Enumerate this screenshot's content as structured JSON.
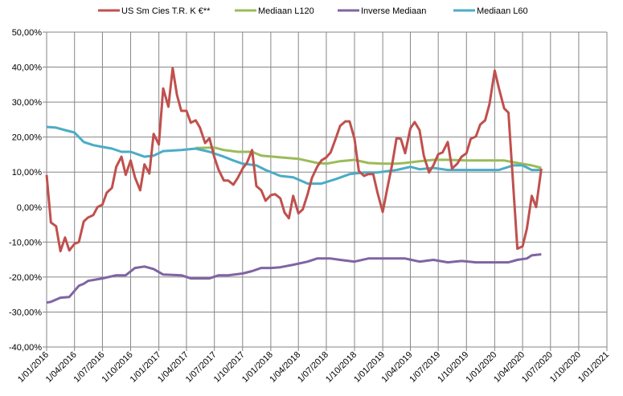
{
  "chart_data": {
    "type": "line",
    "title": "",
    "xlabel": "",
    "ylabel": "",
    "legend_position": "top",
    "grid": true,
    "xlim": [
      "2016-01-01",
      "2021-01-01"
    ],
    "ylim": [
      -40,
      50
    ],
    "y_tick_labels": [
      "-40,00%",
      "-30,00%",
      "-20,00%",
      "-10,00%",
      "0,00%",
      "10,00%",
      "20,00%",
      "30,00%",
      "40,00%",
      "50,00%"
    ],
    "y_tick_values": [
      -40,
      -30,
      -20,
      -10,
      0,
      10,
      20,
      30,
      40,
      50
    ],
    "x_tick_labels": [
      "1/01/2016",
      "1/04/2016",
      "1/07/2016",
      "1/10/2016",
      "1/01/2017",
      "1/04/2017",
      "1/07/2017",
      "1/10/2017",
      "1/01/2018",
      "1/04/2018",
      "1/07/2018",
      "1/10/2018",
      "1/01/2019",
      "1/04/2019",
      "1/07/2019",
      "1/10/2019",
      "1/01/2020",
      "1/04/2020",
      "1/07/2020",
      "1/10/2020",
      "1/01/2021"
    ],
    "x_tick_values": [
      "2016-01-01",
      "2016-04-01",
      "2016-07-01",
      "2016-10-01",
      "2017-01-01",
      "2017-04-01",
      "2017-07-01",
      "2017-10-01",
      "2018-01-01",
      "2018-04-01",
      "2018-07-01",
      "2018-10-01",
      "2019-01-01",
      "2019-04-01",
      "2019-07-01",
      "2019-10-01",
      "2020-01-01",
      "2020-04-01",
      "2020-07-01",
      "2020-10-01",
      "2021-01-01"
    ],
    "series": [
      {
        "name": "US Sm Cies T.R. K €**",
        "color": "#c0504d",
        "points": [
          [
            "2016-01-01",
            9.2
          ],
          [
            "2016-01-15",
            -4.4
          ],
          [
            "2016-02-01",
            -5.5
          ],
          [
            "2016-02-15",
            -12.6
          ],
          [
            "2016-03-01",
            -8.7
          ],
          [
            "2016-03-15",
            -12.4
          ],
          [
            "2016-04-01",
            -10.5
          ],
          [
            "2016-04-15",
            -10
          ],
          [
            "2016-05-01",
            -4.1
          ],
          [
            "2016-05-15",
            -3
          ],
          [
            "2016-06-01",
            -2.3
          ],
          [
            "2016-06-15",
            0
          ],
          [
            "2016-07-01",
            0.7
          ],
          [
            "2016-07-15",
            4.1
          ],
          [
            "2016-08-01",
            5.5
          ],
          [
            "2016-08-15",
            11.5
          ],
          [
            "2016-09-01",
            14.4
          ],
          [
            "2016-09-15",
            9.2
          ],
          [
            "2016-10-01",
            13.3
          ],
          [
            "2016-10-15",
            8.5
          ],
          [
            "2016-11-01",
            4.8
          ],
          [
            "2016-11-15",
            12.2
          ],
          [
            "2016-12-01",
            9.6
          ],
          [
            "2016-12-15",
            20.9
          ],
          [
            "2017-01-01",
            17.9
          ],
          [
            "2017-01-15",
            33.9
          ],
          [
            "2017-02-01",
            28.7
          ],
          [
            "2017-02-15",
            39.7
          ],
          [
            "2017-03-01",
            32.1
          ],
          [
            "2017-03-15",
            27.5
          ],
          [
            "2017-04-01",
            27.5
          ],
          [
            "2017-04-15",
            24.1
          ],
          [
            "2017-05-01",
            24.8
          ],
          [
            "2017-05-15",
            22.7
          ],
          [
            "2017-06-01",
            18.3
          ],
          [
            "2017-06-15",
            19.7
          ],
          [
            "2017-07-01",
            14.2
          ],
          [
            "2017-07-15",
            10.6
          ],
          [
            "2017-08-01",
            7.6
          ],
          [
            "2017-08-15",
            7.6
          ],
          [
            "2017-09-01",
            6.4
          ],
          [
            "2017-09-15",
            8.3
          ],
          [
            "2017-10-01",
            11
          ],
          [
            "2017-10-15",
            12.6
          ],
          [
            "2017-11-01",
            16.3
          ],
          [
            "2017-11-15",
            6
          ],
          [
            "2017-12-01",
            4.8
          ],
          [
            "2017-12-15",
            1.8
          ],
          [
            "2018-01-01",
            3.4
          ],
          [
            "2018-01-15",
            3.7
          ],
          [
            "2018-02-01",
            2.5
          ],
          [
            "2018-02-15",
            -1.6
          ],
          [
            "2018-03-01",
            -3.2
          ],
          [
            "2018-03-15",
            3.2
          ],
          [
            "2018-04-01",
            -1.8
          ],
          [
            "2018-04-15",
            -0.7
          ],
          [
            "2018-05-01",
            3.7
          ],
          [
            "2018-05-15",
            8.3
          ],
          [
            "2018-06-01",
            11.5
          ],
          [
            "2018-06-15",
            13.3
          ],
          [
            "2018-07-01",
            14.2
          ],
          [
            "2018-07-15",
            15.6
          ],
          [
            "2018-08-01",
            19.7
          ],
          [
            "2018-08-15",
            23.2
          ],
          [
            "2018-09-01",
            24.5
          ],
          [
            "2018-09-15",
            24.5
          ],
          [
            "2018-10-01",
            19.5
          ],
          [
            "2018-10-15",
            10.3
          ],
          [
            "2018-11-01",
            8.9
          ],
          [
            "2018-11-15",
            9.4
          ],
          [
            "2018-12-01",
            9.4
          ],
          [
            "2018-12-15",
            4.1
          ],
          [
            "2019-01-01",
            -1.4
          ],
          [
            "2019-01-15",
            5
          ],
          [
            "2019-02-01",
            12.4
          ],
          [
            "2019-02-15",
            19.7
          ],
          [
            "2019-03-01",
            19.5
          ],
          [
            "2019-03-15",
            15.4
          ],
          [
            "2019-04-01",
            22.5
          ],
          [
            "2019-04-15",
            24.3
          ],
          [
            "2019-05-01",
            22
          ],
          [
            "2019-05-15",
            14.7
          ],
          [
            "2019-06-01",
            9.9
          ],
          [
            "2019-06-15",
            11.9
          ],
          [
            "2019-07-01",
            15.1
          ],
          [
            "2019-07-15",
            15.6
          ],
          [
            "2019-08-01",
            18.6
          ],
          [
            "2019-08-15",
            11
          ],
          [
            "2019-09-01",
            12.4
          ],
          [
            "2019-09-15",
            14.4
          ],
          [
            "2019-10-01",
            15.4
          ],
          [
            "2019-10-15",
            19.5
          ],
          [
            "2019-11-01",
            20.2
          ],
          [
            "2019-11-15",
            23.6
          ],
          [
            "2019-12-01",
            24.8
          ],
          [
            "2019-12-15",
            29.4
          ],
          [
            "2020-01-01",
            39
          ],
          [
            "2020-01-15",
            33.9
          ],
          [
            "2020-02-01",
            28.2
          ],
          [
            "2020-02-15",
            27
          ],
          [
            "2020-03-15",
            -11.9
          ],
          [
            "2020-04-01",
            -11.2
          ],
          [
            "2020-04-15",
            -6.2
          ],
          [
            "2020-05-01",
            3.2
          ],
          [
            "2020-05-15",
            0
          ],
          [
            "2020-06-01",
            11
          ]
        ]
      },
      {
        "name": "Mediaan L120",
        "color": "#9bbb59",
        "points": [
          [
            "2017-05-01",
            16.9
          ],
          [
            "2017-07-01",
            17
          ],
          [
            "2017-08-01",
            16.3
          ],
          [
            "2017-09-15",
            15.8
          ],
          [
            "2017-11-01",
            15.8
          ],
          [
            "2017-12-01",
            14.7
          ],
          [
            "2018-02-01",
            14.2
          ],
          [
            "2018-04-01",
            13.8
          ],
          [
            "2018-06-01",
            12.6
          ],
          [
            "2018-07-01",
            12.4
          ],
          [
            "2018-08-15",
            13.1
          ],
          [
            "2018-10-01",
            13.5
          ],
          [
            "2018-11-15",
            12.6
          ],
          [
            "2019-01-01",
            12.4
          ],
          [
            "2019-02-15",
            12.4
          ],
          [
            "2019-03-15",
            12.6
          ],
          [
            "2019-05-01",
            13.1
          ],
          [
            "2019-06-15",
            13.5
          ],
          [
            "2019-08-01",
            13.5
          ],
          [
            "2019-10-01",
            13.3
          ],
          [
            "2019-11-15",
            13.3
          ],
          [
            "2020-02-01",
            13.3
          ],
          [
            "2020-03-15",
            12.6
          ],
          [
            "2020-05-01",
            11.9
          ],
          [
            "2020-06-01",
            11.2
          ]
        ]
      },
      {
        "name": "Inverse Mediaan",
        "color": "#8064a2",
        "points": [
          [
            "2016-01-01",
            -27.3
          ],
          [
            "2016-01-15",
            -27.1
          ],
          [
            "2016-02-15",
            -25.9
          ],
          [
            "2016-03-15",
            -25.7
          ],
          [
            "2016-04-15",
            -22.5
          ],
          [
            "2016-05-01",
            -21.9
          ],
          [
            "2016-05-15",
            -21.1
          ],
          [
            "2016-07-01",
            -20.4
          ],
          [
            "2016-08-15",
            -19.5
          ],
          [
            "2016-09-15",
            -19.5
          ],
          [
            "2016-10-15",
            -17.4
          ],
          [
            "2016-11-15",
            -17
          ],
          [
            "2016-12-15",
            -17.7
          ],
          [
            "2017-01-15",
            -19.3
          ],
          [
            "2017-03-15",
            -19.5
          ],
          [
            "2017-04-15",
            -20.4
          ],
          [
            "2017-06-15",
            -20.4
          ],
          [
            "2017-07-15",
            -19.5
          ],
          [
            "2017-08-15",
            -19.5
          ],
          [
            "2017-10-01",
            -19
          ],
          [
            "2017-11-01",
            -18.3
          ],
          [
            "2017-12-01",
            -17.4
          ],
          [
            "2018-01-01",
            -17.4
          ],
          [
            "2018-02-01",
            -17.2
          ],
          [
            "2018-03-15",
            -16.5
          ],
          [
            "2018-05-01",
            -15.6
          ],
          [
            "2018-06-01",
            -14.7
          ],
          [
            "2018-07-15",
            -14.7
          ],
          [
            "2018-08-15",
            -15.1
          ],
          [
            "2018-10-01",
            -15.6
          ],
          [
            "2018-11-15",
            -14.7
          ],
          [
            "2019-03-15",
            -14.7
          ],
          [
            "2019-05-01",
            -15.6
          ],
          [
            "2019-06-15",
            -15.1
          ],
          [
            "2019-08-01",
            -15.8
          ],
          [
            "2019-09-15",
            -15.4
          ],
          [
            "2019-11-01",
            -15.8
          ],
          [
            "2020-02-15",
            -15.8
          ],
          [
            "2020-03-15",
            -15.1
          ],
          [
            "2020-04-15",
            -14.7
          ],
          [
            "2020-05-01",
            -13.8
          ],
          [
            "2020-06-01",
            -13.5
          ]
        ]
      },
      {
        "name": "Mediaan L60",
        "color": "#4bacc6",
        "points": [
          [
            "2016-01-01",
            22.9
          ],
          [
            "2016-02-01",
            22.7
          ],
          [
            "2016-03-01",
            22
          ],
          [
            "2016-04-01",
            21.3
          ],
          [
            "2016-05-01",
            18.6
          ],
          [
            "2016-06-01",
            17.7
          ],
          [
            "2016-07-01",
            17.2
          ],
          [
            "2016-08-01",
            16.7
          ],
          [
            "2016-09-01",
            15.8
          ],
          [
            "2016-10-01",
            15.8
          ],
          [
            "2016-11-15",
            14.4
          ],
          [
            "2016-12-15",
            14.7
          ],
          [
            "2017-01-15",
            16
          ],
          [
            "2017-03-15",
            16.3
          ],
          [
            "2017-05-01",
            16.7
          ],
          [
            "2017-06-15",
            15.8
          ],
          [
            "2017-08-01",
            14.4
          ],
          [
            "2017-09-01",
            13.3
          ],
          [
            "2017-10-01",
            12.4
          ],
          [
            "2017-11-15",
            11.9
          ],
          [
            "2017-12-15",
            10.6
          ],
          [
            "2018-02-01",
            8.9
          ],
          [
            "2018-03-15",
            8.5
          ],
          [
            "2018-05-01",
            6.7
          ],
          [
            "2018-06-15",
            6.7
          ],
          [
            "2018-08-01",
            8
          ],
          [
            "2018-09-15",
            9.4
          ],
          [
            "2018-11-01",
            9.9
          ],
          [
            "2018-12-15",
            9.9
          ],
          [
            "2019-02-15",
            10.6
          ],
          [
            "2019-04-01",
            11.5
          ],
          [
            "2019-05-01",
            10.8
          ],
          [
            "2019-06-15",
            11.2
          ],
          [
            "2019-08-01",
            10.6
          ],
          [
            "2020-01-15",
            10.6
          ],
          [
            "2020-03-01",
            11.9
          ],
          [
            "2020-04-01",
            11.9
          ],
          [
            "2020-05-01",
            10.6
          ],
          [
            "2020-06-01",
            10.6
          ]
        ]
      }
    ]
  }
}
